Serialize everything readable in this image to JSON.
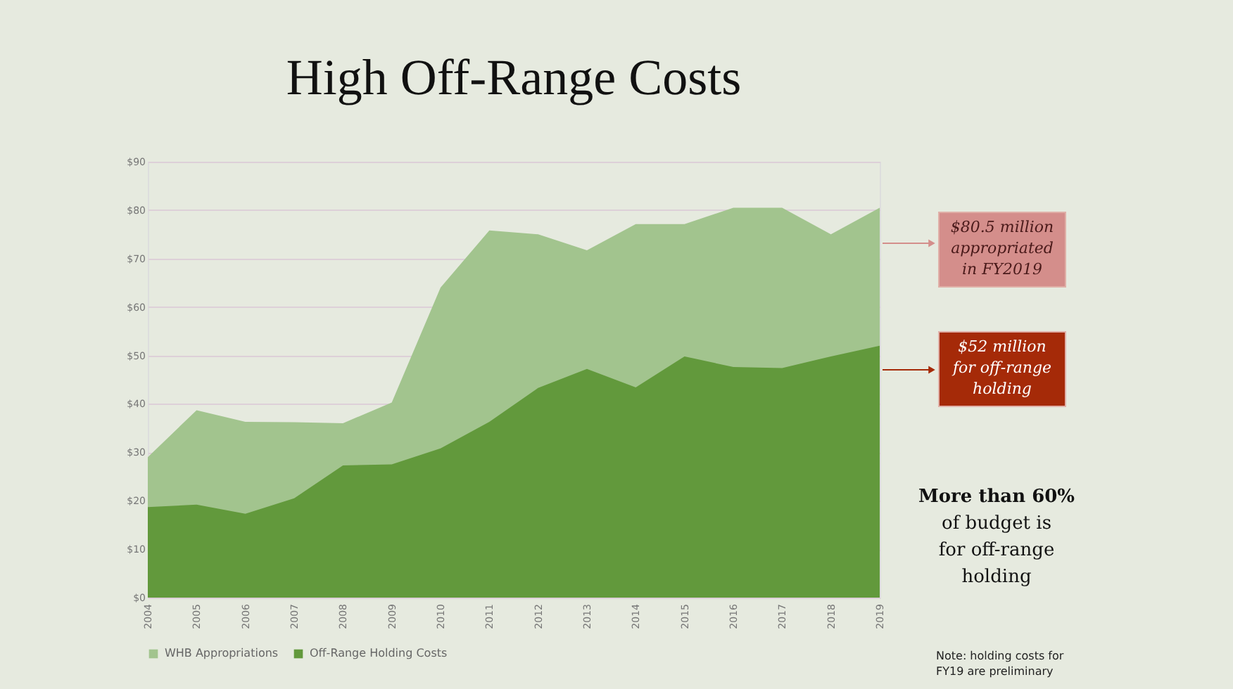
{
  "chart_data": {
    "type": "area",
    "title": "High Off-Range Costs",
    "categories": [
      "2004",
      "2005",
      "2006",
      "2007",
      "2008",
      "2009",
      "2010",
      "2011",
      "2012",
      "2013",
      "2014",
      "2015",
      "2016",
      "2017",
      "2018",
      "2019"
    ],
    "series": [
      {
        "name": "WHB Appropriations",
        "color": "#a2c48e",
        "values": [
          29,
          38.7,
          36.3,
          36.2,
          36,
          40.3,
          64,
          75.8,
          75,
          71.7,
          77.1,
          77.1,
          80.5,
          80.5,
          75,
          80.5
        ]
      },
      {
        "name": "Off-Range Holding Costs",
        "color": "#62993c",
        "values": [
          18.7,
          19.2,
          17.3,
          20.5,
          27.3,
          27.5,
          30.8,
          36.3,
          43.3,
          47.2,
          43.4,
          49.8,
          47.6,
          47.4,
          49.8,
          52
        ]
      }
    ],
    "ylim": [
      0,
      90
    ],
    "yticks": [
      {
        "value": 0,
        "label": "$0"
      },
      {
        "value": 10,
        "label": "$10"
      },
      {
        "value": 20,
        "label": "$20"
      },
      {
        "value": 30,
        "label": "$30"
      },
      {
        "value": 40,
        "label": "$40"
      },
      {
        "value": 50,
        "label": "$50"
      },
      {
        "value": 60,
        "label": "$60"
      },
      {
        "value": 70,
        "label": "$70"
      },
      {
        "value": 80,
        "label": "$80"
      },
      {
        "value": 90,
        "label": "$90"
      }
    ],
    "grid": "y",
    "legend": "bottom",
    "annotations": [
      "$80.5 million appropriated in FY2019",
      "$52 million for off-range holding",
      "More than 60% of budget is for off-range holding",
      "Note: holding costs for FY19 are preliminary"
    ]
  }
}
